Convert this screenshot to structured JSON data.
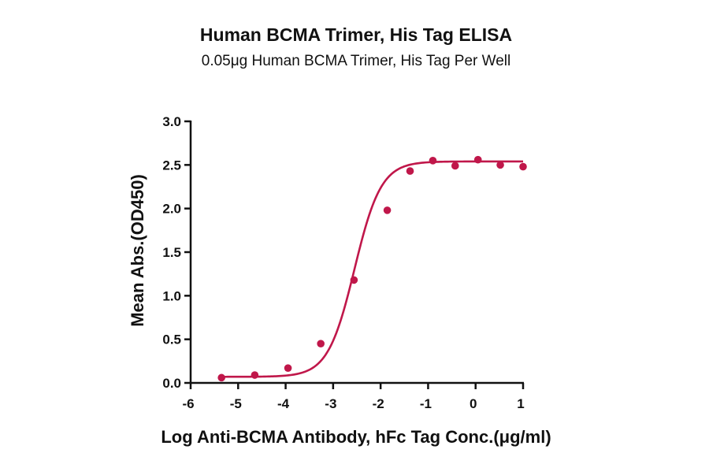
{
  "chart_data": {
    "type": "scatter",
    "title": "Human BCMA Trimer, His Tag ELISA",
    "subtitle": "0.05μg Human BCMA Trimer, His Tag Per Well",
    "xlabel": "Log Anti-BCMA Antibody, hFc Tag Conc.(μg/ml)",
    "ylabel": "Mean Abs.(OD450)",
    "xlim": [
      -6,
      1
    ],
    "ylim": [
      0,
      3
    ],
    "xticks": [
      "-6",
      "-5",
      "-4",
      "-3",
      "-2",
      "-1",
      "0",
      "1"
    ],
    "yticks": [
      "0.0",
      "0.5",
      "1.0",
      "1.5",
      "2.0",
      "2.5",
      "3.0"
    ],
    "grid": false,
    "colors": {
      "series": "#c0174a"
    },
    "series": [
      {
        "points": [
          {
            "x": -5.35,
            "y": 0.06
          },
          {
            "x": -4.65,
            "y": 0.09
          },
          {
            "x": -3.95,
            "y": 0.17
          },
          {
            "x": -3.26,
            "y": 0.45
          },
          {
            "x": -2.56,
            "y": 1.18
          },
          {
            "x": -1.86,
            "y": 1.98
          },
          {
            "x": -1.38,
            "y": 2.43
          },
          {
            "x": -0.9,
            "y": 2.55
          },
          {
            "x": -0.43,
            "y": 2.49
          },
          {
            "x": 0.05,
            "y": 2.56
          },
          {
            "x": 0.52,
            "y": 2.5
          },
          {
            "x": 1.0,
            "y": 2.48
          }
        ],
        "fit": {
          "model": "4PL",
          "bottom": 0.07,
          "top": 2.54,
          "logEC50": -2.55,
          "hill": 1.55
        }
      }
    ]
  }
}
